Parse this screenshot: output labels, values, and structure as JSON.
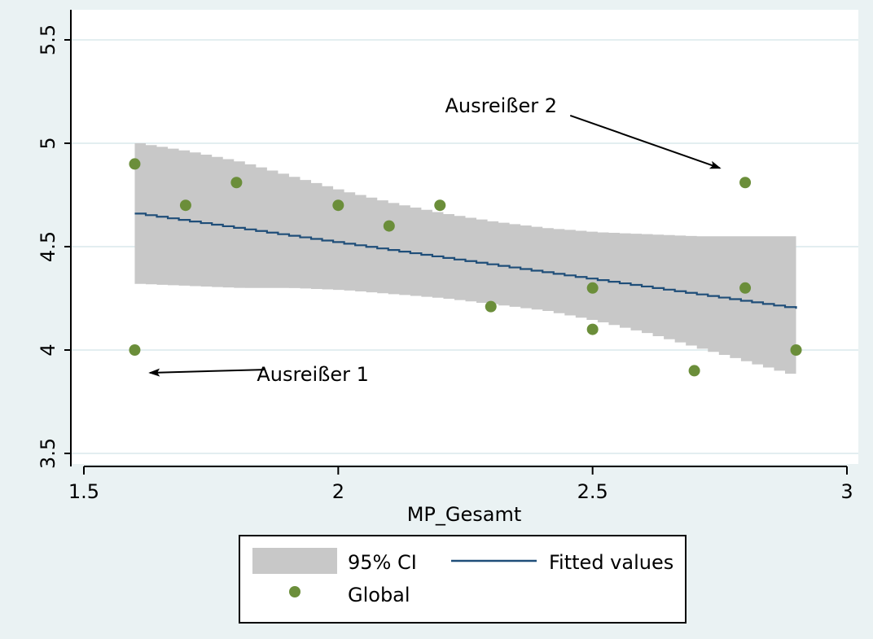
{
  "chart_data": {
    "type": "scatter",
    "title": "",
    "xlabel": "MP_Gesamt",
    "ylabel": "",
    "xlim": [
      1.5,
      3.0
    ],
    "ylim": [
      3.5,
      5.5
    ],
    "xticks": [
      1.5,
      2,
      2.5,
      3
    ],
    "xtick_labels": [
      "1.5",
      "2",
      "2.5",
      "3"
    ],
    "yticks": [
      3.5,
      4,
      4.5,
      5,
      5.5
    ],
    "ytick_labels": [
      "3.5",
      "4",
      "4.5",
      "5",
      "5.5"
    ],
    "grid": true,
    "legend_position": "bottom",
    "series": [
      {
        "name": "95% CI",
        "kind": "band",
        "color": "#c8c8c8",
        "x": [
          1.6,
          1.7,
          1.8,
          1.9,
          2.0,
          2.1,
          2.2,
          2.3,
          2.4,
          2.5,
          2.6,
          2.7,
          2.8,
          2.9
        ],
        "lower": [
          4.32,
          4.31,
          4.3,
          4.3,
          4.29,
          4.27,
          4.25,
          4.22,
          4.19,
          4.14,
          4.08,
          4.01,
          3.94,
          3.87
        ],
        "upper": [
          5.0,
          4.96,
          4.91,
          4.84,
          4.77,
          4.71,
          4.66,
          4.62,
          4.59,
          4.57,
          4.56,
          4.55,
          4.55,
          4.55
        ]
      },
      {
        "name": "Fitted values",
        "kind": "line",
        "color": "#1f4e79",
        "x": [
          1.6,
          2.9
        ],
        "y": [
          4.66,
          4.2
        ]
      },
      {
        "name": "Global",
        "kind": "scatter",
        "color": "#6b8e3a",
        "points": [
          {
            "x": 1.6,
            "y": 4.9
          },
          {
            "x": 1.6,
            "y": 4.0
          },
          {
            "x": 1.7,
            "y": 4.7
          },
          {
            "x": 1.8,
            "y": 4.81
          },
          {
            "x": 2.0,
            "y": 4.7
          },
          {
            "x": 2.1,
            "y": 4.6
          },
          {
            "x": 2.2,
            "y": 4.7
          },
          {
            "x": 2.3,
            "y": 4.21
          },
          {
            "x": 2.5,
            "y": 4.3
          },
          {
            "x": 2.5,
            "y": 4.1
          },
          {
            "x": 2.7,
            "y": 3.9
          },
          {
            "x": 2.8,
            "y": 4.81
          },
          {
            "x": 2.8,
            "y": 4.3
          },
          {
            "x": 2.9,
            "y": 4.0
          }
        ]
      }
    ],
    "annotations": [
      {
        "text": "Ausreißer 1",
        "text_x": 1.95,
        "text_y": 3.85,
        "target_x": 1.63,
        "target_y": 3.89
      },
      {
        "text": "Ausreißer 2",
        "text_x": 2.32,
        "text_y": 5.15,
        "target_x": 2.75,
        "target_y": 4.88
      }
    ]
  },
  "colors": {
    "background": "#eaf2f3",
    "plot_background": "#ffffff",
    "grid": "#e3eef0",
    "ci_band": "#c8c8c8",
    "fitted_line": "#1f4e79",
    "points": "#6b8e3a"
  }
}
